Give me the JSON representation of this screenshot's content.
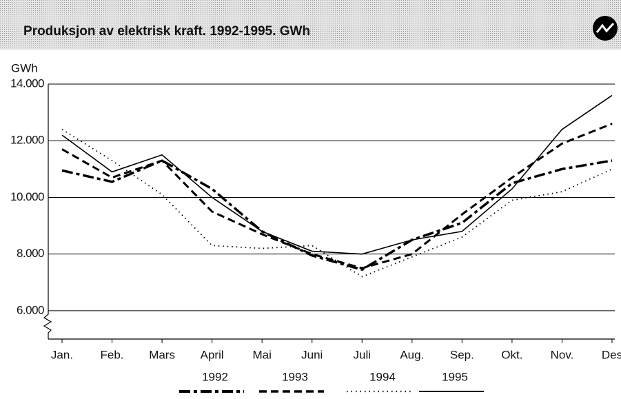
{
  "chart_data": {
    "type": "line",
    "title": "Produksjon av elektrisk kraft. 1992-1995. GWh",
    "y_label": "GWh",
    "categories": [
      "Jan.",
      "Feb.",
      "Mars",
      "April",
      "Mai",
      "Juni",
      "Juli",
      "Aug.",
      "Sep.",
      "Okt.",
      "Nov.",
      "Des"
    ],
    "series": [
      {
        "name": "1992",
        "color": "#000000",
        "style": "dashdot",
        "values": [
          10950,
          10550,
          11300,
          10300,
          8800,
          7950,
          7450,
          8500,
          9100,
          10500,
          11000,
          11300
        ]
      },
      {
        "name": "1993",
        "color": "#000000",
        "style": "dashed",
        "values": [
          11700,
          10700,
          11300,
          9500,
          8700,
          8000,
          7500,
          8000,
          9400,
          10700,
          11900,
          12600
        ]
      },
      {
        "name": "1994",
        "color": "#000000",
        "style": "dotted",
        "values": [
          12400,
          11300,
          10100,
          8300,
          8200,
          8300,
          7200,
          7900,
          8600,
          9900,
          10200,
          11000
        ]
      },
      {
        "name": "1995",
        "color": "#000000",
        "style": "solid",
        "values": [
          12200,
          10900,
          11500,
          10000,
          8800,
          8100,
          8000,
          8500,
          8800,
          10300,
          12400,
          13600
        ]
      }
    ],
    "ylim": [
      5000,
      14000
    ],
    "yticks": [
      {
        "value": 6000,
        "label": "6.000"
      },
      {
        "value": 8000,
        "label": "8.000"
      },
      {
        "value": 10000,
        "label": "10.000"
      },
      {
        "value": 12000,
        "label": "12.000"
      },
      {
        "value": 14000,
        "label": "14.000"
      }
    ],
    "grid": true
  }
}
